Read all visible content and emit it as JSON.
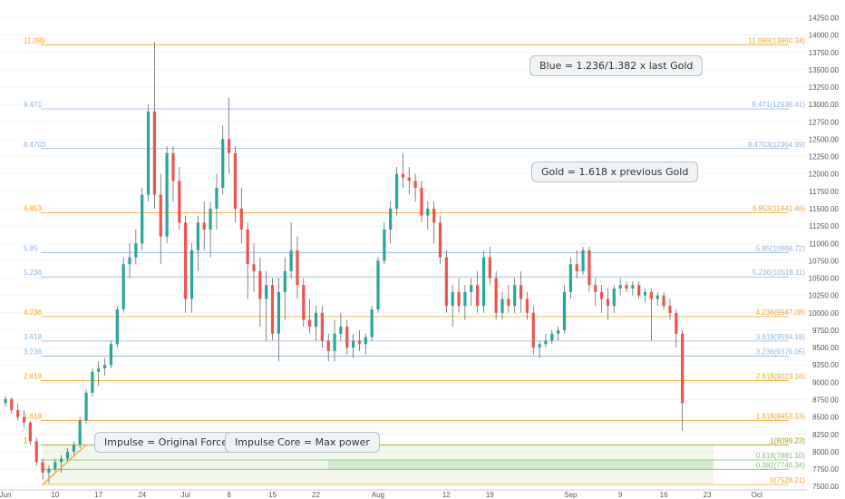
{
  "chart_data": {
    "type": "candlestick",
    "y_range": [
      7450,
      14400
    ],
    "y_ticks": [
      7500,
      7750,
      8000,
      8250,
      8500,
      8750,
      9000,
      9250,
      9500,
      9750,
      10000,
      10250,
      10500,
      10750,
      11000,
      11250,
      11500,
      11750,
      12000,
      12250,
      12500,
      12750,
      13000,
      13250,
      13500,
      13750,
      14000,
      14250
    ],
    "y_tick_labels": [
      "7500.00",
      "7750.00",
      "8000.00",
      "8250.00",
      "8500.00",
      "8750.00",
      "9000.00",
      "9250.00",
      "9500.00",
      "9750.00",
      "10000.00",
      "10250.00",
      "10500.00",
      "10750.00",
      "11000.00",
      "11250.00",
      "11500.00",
      "11750.00",
      "12000.00",
      "12250.00",
      "12500.00",
      "12750.00",
      "13000.00",
      "13250.00",
      "13500.00",
      "13750.00",
      "14000.00",
      "14250.00"
    ],
    "x_ticks": [
      {
        "label": "Jun",
        "day": 0
      },
      {
        "label": "10",
        "day": 8
      },
      {
        "label": "17",
        "day": 15
      },
      {
        "label": "24",
        "day": 22
      },
      {
        "label": "Jul",
        "day": 29
      },
      {
        "label": "8",
        "day": 36
      },
      {
        "label": "15",
        "day": 43
      },
      {
        "label": "22",
        "day": 50
      },
      {
        "label": "Aug",
        "day": 60
      },
      {
        "label": "12",
        "day": 71
      },
      {
        "label": "19",
        "day": 78
      },
      {
        "label": "Sep",
        "day": 91
      },
      {
        "label": "9",
        "day": 99
      },
      {
        "label": "16",
        "day": 106
      },
      {
        "label": "23",
        "day": 113
      },
      {
        "label": "Oct",
        "day": 121
      }
    ],
    "fib_levels": [
      {
        "left": "11.089",
        "right": "11.089(13860.34)",
        "price": 13860.34,
        "color": "#f5a623"
      },
      {
        "left": "9.471",
        "right": "9.471(12936.41)",
        "price": 12936.41,
        "color": "#8fb4e0"
      },
      {
        "left": "8.4703",
        "right": "8.4703(12364.99)",
        "price": 12364.99,
        "color": "#8fb4e0"
      },
      {
        "left": "6.853",
        "right": "6.853(11441.46)",
        "price": 11441.46,
        "color": "#f5a623"
      },
      {
        "left": "5.85",
        "right": "5.85(10868.72)",
        "price": 10868.72,
        "color": "#8fb4e0"
      },
      {
        "left": "5.236",
        "right": "5.236(10518.11)",
        "price": 10518.11,
        "color": "#8fb4e0"
      },
      {
        "left": "4.236",
        "right": "4.236(9947.08)",
        "price": 9947.08,
        "color": "#f5a623"
      },
      {
        "left": "3.618",
        "right": "3.618(9594.19)",
        "price": 9594.19,
        "color": "#8fb4e0"
      },
      {
        "left": "3.236",
        "right": "3.236(9376.05)",
        "price": 9376.05,
        "color": "#8fb4e0"
      },
      {
        "left": "2.618",
        "right": "2.618(9023.16)",
        "price": 9023.16,
        "color": "#f5a623"
      },
      {
        "left": "1.618",
        "right": "1.618(8452.13)",
        "price": 8452.13,
        "color": "#f5a623"
      },
      {
        "left": "1",
        "right": "1(8099.23)",
        "price": 8099.23,
        "color": "#a8a000"
      },
      {
        "left": "",
        "right": "0.618(7881.10)",
        "price": 7881.1,
        "color": "#7cbf7c"
      },
      {
        "left": "",
        "right": "0.382(7746.34)",
        "price": 7746.34,
        "color": "#7cbf7c"
      },
      {
        "left": "",
        "right": "0(7528.21)",
        "price": 7528.21,
        "color": "#f5a623"
      }
    ],
    "candles": [
      [
        8700,
        8800,
        8650,
        8760
      ],
      [
        8760,
        8780,
        8550,
        8600
      ],
      [
        8600,
        8700,
        8450,
        8500
      ],
      [
        8500,
        8600,
        8350,
        8420
      ],
      [
        8420,
        8450,
        8100,
        8150
      ],
      [
        8150,
        8200,
        7800,
        7850
      ],
      [
        7850,
        7900,
        7600,
        7700
      ],
      [
        7700,
        7800,
        7550,
        7750
      ],
      [
        7750,
        7900,
        7700,
        7850
      ],
      [
        7850,
        7950,
        7700,
        7900
      ],
      [
        7900,
        8050,
        7850,
        8000
      ],
      [
        8000,
        8150,
        7950,
        8100
      ],
      [
        8100,
        8500,
        8050,
        8450
      ],
      [
        8450,
        8900,
        8400,
        8850
      ],
      [
        8850,
        9200,
        8800,
        9150
      ],
      [
        9150,
        9300,
        8950,
        9200
      ],
      [
        9200,
        9350,
        9100,
        9250
      ],
      [
        9250,
        9600,
        9200,
        9550
      ],
      [
        9550,
        10100,
        9500,
        10050
      ],
      [
        10050,
        10800,
        10000,
        10700
      ],
      [
        10700,
        11000,
        10500,
        10800
      ],
      [
        10800,
        11200,
        10700,
        11000
      ],
      [
        11000,
        11800,
        10900,
        11700
      ],
      [
        11700,
        13000,
        11600,
        12900
      ],
      [
        12900,
        13900,
        11500,
        11700
      ],
      [
        11700,
        12000,
        10700,
        11100
      ],
      [
        11100,
        12400,
        11000,
        12300
      ],
      [
        12300,
        12400,
        11600,
        11900
      ],
      [
        11900,
        12100,
        11200,
        11300
      ],
      [
        11300,
        11400,
        10000,
        10200
      ],
      [
        10200,
        11000,
        10000,
        10900
      ],
      [
        10900,
        11400,
        10600,
        11300
      ],
      [
        11300,
        11600,
        10900,
        11200
      ],
      [
        11200,
        11600,
        10800,
        11500
      ],
      [
        11500,
        12000,
        11200,
        11800
      ],
      [
        11800,
        12700,
        11700,
        12500
      ],
      [
        12500,
        13100,
        12000,
        12300
      ],
      [
        12300,
        12400,
        11300,
        11500
      ],
      [
        11500,
        11800,
        11000,
        11200
      ],
      [
        11200,
        11300,
        10200,
        10700
      ],
      [
        10700,
        11000,
        10300,
        10600
      ],
      [
        10600,
        10800,
        9800,
        10200
      ],
      [
        10200,
        10600,
        9600,
        10400
      ],
      [
        10400,
        10500,
        9600,
        9700
      ],
      [
        9700,
        10500,
        9300,
        10300
      ],
      [
        10300,
        10800,
        9900,
        10600
      ],
      [
        10600,
        11300,
        10500,
        10900
      ],
      [
        10900,
        11100,
        10200,
        10400
      ],
      [
        10400,
        10500,
        9800,
        9900
      ],
      [
        9900,
        10200,
        9700,
        9800
      ],
      [
        9800,
        10100,
        9600,
        10000
      ],
      [
        10000,
        10100,
        9500,
        9600
      ],
      [
        9600,
        9700,
        9300,
        9450
      ],
      [
        9450,
        9900,
        9300,
        9700
      ],
      [
        9700,
        10000,
        9600,
        9800
      ],
      [
        9800,
        9900,
        9400,
        9500
      ],
      [
        9500,
        9700,
        9350,
        9600
      ],
      [
        9600,
        9750,
        9450,
        9550
      ],
      [
        9550,
        9700,
        9400,
        9650
      ],
      [
        9650,
        10100,
        9600,
        10050
      ],
      [
        10050,
        10800,
        10000,
        10750
      ],
      [
        10750,
        11300,
        10700,
        11200
      ],
      [
        11200,
        11600,
        11000,
        11500
      ],
      [
        11500,
        12100,
        11400,
        12000
      ],
      [
        12000,
        12300,
        11800,
        11950
      ],
      [
        11950,
        12100,
        11700,
        11900
      ],
      [
        11900,
        12000,
        11600,
        11800
      ],
      [
        11800,
        11900,
        11300,
        11400
      ],
      [
        11400,
        11600,
        11200,
        11500
      ],
      [
        11500,
        11600,
        11000,
        11300
      ],
      [
        11300,
        11400,
        10700,
        10800
      ],
      [
        10800,
        10900,
        10000,
        10100
      ],
      [
        10100,
        10400,
        9800,
        10300
      ],
      [
        10300,
        10500,
        10000,
        10100
      ],
      [
        10100,
        10400,
        9900,
        10300
      ],
      [
        10300,
        10500,
        10100,
        10400
      ],
      [
        10400,
        10600,
        10000,
        10100
      ],
      [
        10100,
        10900,
        10000,
        10800
      ],
      [
        10800,
        10950,
        10400,
        10500
      ],
      [
        10500,
        10600,
        9900,
        10000
      ],
      [
        10000,
        10300,
        9900,
        10200
      ],
      [
        10200,
        10400,
        10000,
        10100
      ],
      [
        10100,
        10500,
        10000,
        10400
      ],
      [
        10400,
        10600,
        10000,
        10200
      ],
      [
        10200,
        10300,
        9900,
        10000
      ],
      [
        10000,
        10100,
        9400,
        9500
      ],
      [
        9500,
        9600,
        9350,
        9550
      ],
      [
        9550,
        9700,
        9500,
        9600
      ],
      [
        9600,
        9750,
        9550,
        9700
      ],
      [
        9700,
        9800,
        9600,
        9750
      ],
      [
        9750,
        10400,
        9700,
        10300
      ],
      [
        10300,
        10800,
        10200,
        10700
      ],
      [
        10700,
        10900,
        10500,
        10600
      ],
      [
        10600,
        10950,
        10550,
        10900
      ],
      [
        10900,
        10950,
        10300,
        10400
      ],
      [
        10400,
        10500,
        10100,
        10300
      ],
      [
        10300,
        10400,
        10000,
        10200
      ],
      [
        10200,
        10350,
        9900,
        10100
      ],
      [
        10100,
        10400,
        10000,
        10350
      ],
      [
        10350,
        10500,
        10250,
        10400
      ],
      [
        10400,
        10450,
        10300,
        10350
      ],
      [
        10350,
        10450,
        10250,
        10400
      ],
      [
        10400,
        10450,
        10200,
        10250
      ],
      [
        10250,
        10350,
        10150,
        10300
      ],
      [
        10300,
        10350,
        9600,
        10200
      ],
      [
        10200,
        10300,
        10100,
        10250
      ],
      [
        10250,
        10300,
        10050,
        10100
      ],
      [
        10100,
        10200,
        9900,
        10000
      ],
      [
        10000,
        10050,
        9500,
        9700
      ],
      [
        9700,
        9750,
        8300,
        8700
      ]
    ],
    "boxes": [
      {
        "from_day": 6,
        "to_day": 114,
        "top": 8099.23,
        "bottom": 7528.21,
        "fill": "rgba(160,200,120,0.15)"
      },
      {
        "from_day": 52,
        "to_day": 114,
        "top": 7881.1,
        "bottom": 7746.34,
        "fill": "rgba(120,190,120,0.25)"
      }
    ],
    "annotations": [
      {
        "text": "Blue = 1.236/1.382 x last Gold"
      },
      {
        "text": "Gold  = 1.618 x previous Gold"
      },
      {
        "text": "Impulse = Original Force"
      },
      {
        "text": "Impulse Core = Max power"
      }
    ],
    "colors": {
      "up": "#26a69a",
      "down": "#ef5350",
      "wick": "#555555",
      "axis_text": "#555555",
      "grid": "#e9ecef"
    }
  }
}
